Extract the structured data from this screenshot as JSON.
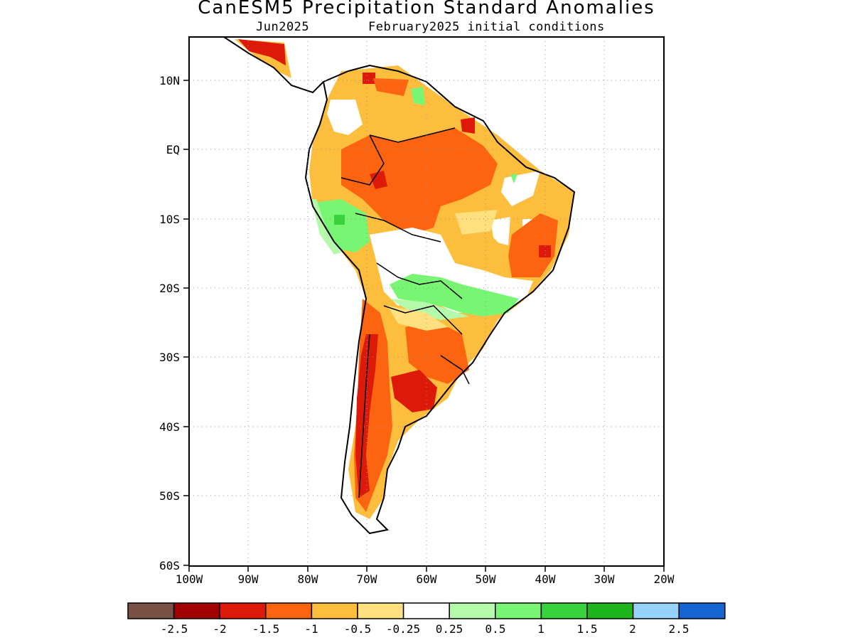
{
  "title": "CanESM5 Precipitation Standard Anomalies",
  "subtitle_left": "Jun2025",
  "subtitle_right": "February2025 initial conditions",
  "lat_labels": [
    "10N",
    "EQ",
    "10S",
    "20S",
    "30S",
    "40S",
    "50S",
    "60S"
  ],
  "lon_labels": [
    "100W",
    "90W",
    "80W",
    "70W",
    "60W",
    "50W",
    "40W",
    "30W",
    "20W"
  ],
  "colorbar": {
    "colors": [
      "#7a5245",
      "#a00000",
      "#dd1a0a",
      "#fd640f",
      "#fdbd3d",
      "#fee07e",
      "#ffffff",
      "#b4faaa",
      "#78f573",
      "#37d23c",
      "#1eb41e",
      "#96d2fa",
      "#1464d2"
    ],
    "labels": [
      "-2.5",
      "-2",
      "-1.5",
      "-1",
      "-0.5",
      "-0.25",
      "0.25",
      "0.5",
      "1",
      "1.5",
      "2",
      "2.5"
    ]
  },
  "chart_data": {
    "type": "heatmap",
    "title": "CanESM5 Precipitation Standard Anomalies",
    "lon_range": [
      -100,
      -20
    ],
    "lat_range": [
      -60,
      15
    ],
    "ticks_lon": [
      "100W",
      "90W",
      "80W",
      "70W",
      "60W",
      "50W",
      "40W",
      "30W",
      "20W"
    ],
    "ticks_lat": [
      "10N",
      "EQ",
      "10S",
      "20S",
      "30S",
      "40S",
      "50S",
      "60S"
    ],
    "levels": [
      -2.5,
      -2,
      -1.5,
      -1,
      -0.5,
      -0.25,
      0.25,
      0.5,
      1,
      1.5,
      2,
      2.5
    ],
    "grid": "dotted"
  }
}
